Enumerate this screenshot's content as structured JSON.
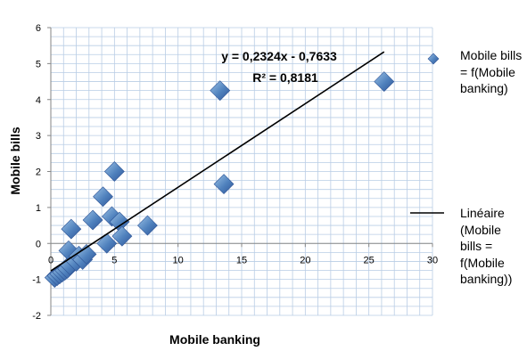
{
  "chart_data": {
    "type": "scatter",
    "title": "",
    "xlabel": "Mobile banking",
    "ylabel": "Mobile bills",
    "xlim": [
      0,
      30
    ],
    "ylim": [
      -2,
      6
    ],
    "x_ticks": [
      "0",
      "5",
      "10",
      "15",
      "20",
      "25",
      "30"
    ],
    "y_ticks": [
      "-2",
      "-1",
      "0",
      "1",
      "2",
      "3",
      "4",
      "5",
      "6"
    ],
    "grid": true,
    "legend_position": "right",
    "colors": {
      "marker": "#4F81BD",
      "marker_dark": "#2F5597",
      "marker_light": "#9DC3E6",
      "trendline": "#000000",
      "grid": "#B9CDE5"
    },
    "series": [
      {
        "name": "Mobile bills = f(Mobile banking)",
        "marker": "diamond",
        "points": [
          {
            "x": 0.3,
            "y": -0.95
          },
          {
            "x": 0.5,
            "y": -0.9
          },
          {
            "x": 0.7,
            "y": -0.85
          },
          {
            "x": 0.9,
            "y": -0.8
          },
          {
            "x": 1.1,
            "y": -0.75
          },
          {
            "x": 1.3,
            "y": -0.7
          },
          {
            "x": 1.5,
            "y": -0.6
          },
          {
            "x": 1.4,
            "y": -0.2
          },
          {
            "x": 1.6,
            "y": 0.4
          },
          {
            "x": 2.0,
            "y": -0.5
          },
          {
            "x": 2.2,
            "y": -0.35
          },
          {
            "x": 2.5,
            "y": -0.45
          },
          {
            "x": 2.8,
            "y": -0.3
          },
          {
            "x": 3.3,
            "y": 0.65
          },
          {
            "x": 4.1,
            "y": 1.3
          },
          {
            "x": 4.4,
            "y": 0.0
          },
          {
            "x": 4.8,
            "y": 0.75
          },
          {
            "x": 5.0,
            "y": 2.0
          },
          {
            "x": 5.4,
            "y": 0.6
          },
          {
            "x": 5.6,
            "y": 0.2
          },
          {
            "x": 7.6,
            "y": 0.5
          },
          {
            "x": 13.3,
            "y": 4.25
          },
          {
            "x": 13.6,
            "y": 1.65
          },
          {
            "x": 26.2,
            "y": 4.5
          }
        ]
      }
    ],
    "trendline": {
      "name": "Linéaire (Mobile bills = f(Mobile banking))",
      "type": "linear",
      "slope": 0.2324,
      "intercept": -0.7633,
      "x_range": [
        0,
        26.2
      ],
      "equation": "y = 0,2324x - 0,7633",
      "r_squared": "R² = 0,8181"
    }
  }
}
